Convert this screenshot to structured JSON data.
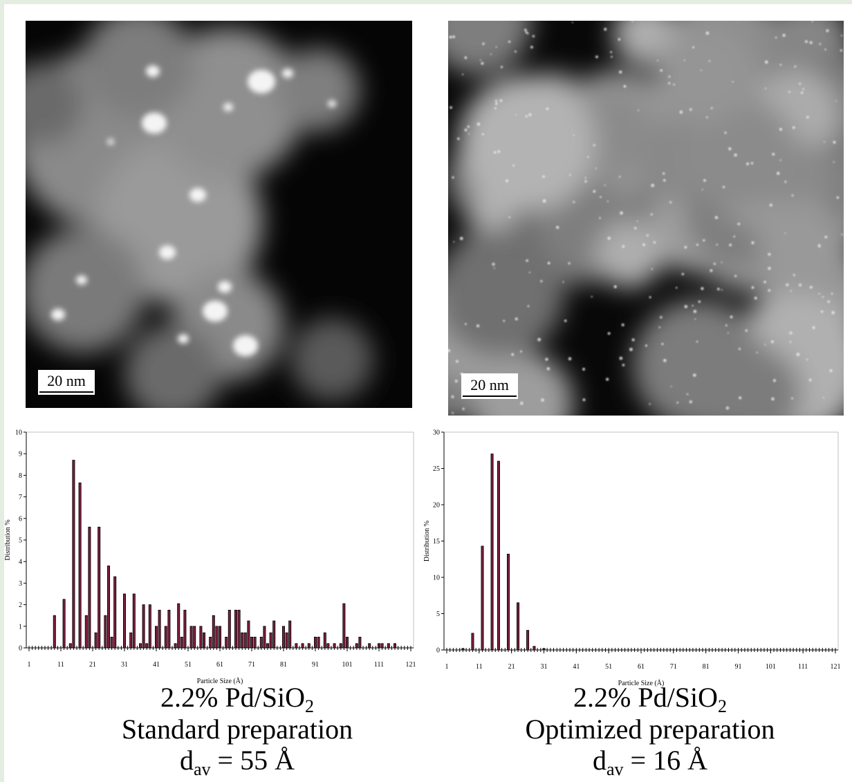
{
  "images": [
    {
      "scale_bar": "20 nm"
    },
    {
      "scale_bar": "20 nm"
    }
  ],
  "chart_data": [
    {
      "type": "bar",
      "y_label": "Distribution %",
      "x_label": "Particle Size (Å)",
      "color": "#7a1f3d",
      "x": [
        9,
        12,
        14,
        15,
        17,
        19,
        20,
        22,
        23,
        25,
        26,
        27,
        28,
        31,
        33,
        34,
        36,
        37,
        38,
        39,
        41,
        42,
        44,
        45,
        47,
        48,
        49,
        50,
        52,
        53,
        55,
        56,
        58,
        59,
        60,
        61,
        63,
        64,
        66,
        67,
        68,
        69,
        70,
        71,
        72,
        74,
        75,
        76,
        77,
        78,
        81,
        82,
        83,
        85,
        87,
        89,
        91,
        92,
        94,
        95,
        97,
        99,
        100,
        101,
        104,
        105,
        108,
        111,
        112,
        114,
        116
      ],
      "values": [
        1.5,
        2.25,
        0.2,
        8.7,
        7.65,
        1.5,
        5.6,
        0.7,
        5.6,
        1.5,
        3.8,
        0.5,
        3.3,
        2.5,
        0.7,
        2.5,
        0.2,
        2.0,
        0.2,
        2.0,
        1.0,
        1.75,
        1.0,
        1.75,
        0.2,
        2.05,
        0.5,
        1.75,
        1.0,
        1.0,
        1.0,
        0.7,
        0.5,
        1.5,
        1.0,
        1.0,
        0.5,
        1.75,
        1.75,
        1.75,
        0.7,
        0.7,
        1.25,
        0.5,
        0.5,
        0.5,
        1.0,
        0.2,
        0.7,
        1.25,
        1.0,
        0.7,
        1.25,
        0.2,
        0.2,
        0.2,
        0.5,
        0.5,
        0.7,
        0.2,
        0.2,
        0.2,
        2.05,
        0.5,
        0.2,
        0.5,
        0.2,
        0.2,
        0.2,
        0.2,
        0.2
      ],
      "xlim": [
        1,
        121
      ],
      "xticks": [
        1,
        11,
        21,
        31,
        41,
        51,
        61,
        71,
        81,
        91,
        101,
        111,
        121
      ],
      "ylim": [
        0,
        10
      ],
      "yticks": [
        0,
        1,
        2,
        3,
        4,
        5,
        6,
        7,
        8,
        9,
        10
      ]
    },
    {
      "type": "bar",
      "y_label": "Distribution %",
      "x_label": "Particle Size (Å)",
      "color": "#7a1f3d",
      "x": [
        6,
        9,
        12,
        15,
        17,
        20,
        23,
        26,
        28,
        31
      ],
      "values": [
        0.2,
        2.3,
        14.3,
        27,
        26,
        13.2,
        6.5,
        2.7,
        0.5,
        0.2
      ],
      "xlim": [
        1,
        121
      ],
      "xticks": [
        1,
        11,
        21,
        31,
        41,
        51,
        61,
        71,
        81,
        91,
        101,
        111,
        121
      ],
      "ylim": [
        0,
        30
      ],
      "yticks": [
        0,
        5,
        10,
        15,
        20,
        25,
        30
      ]
    }
  ],
  "captions": [
    {
      "lines": [
        [
          {
            "text": "2.2% Pd/SiO"
          },
          {
            "sub": "2"
          }
        ],
        [
          {
            "text": "Standard preparation"
          }
        ],
        [
          {
            "text": "d"
          },
          {
            "sub": "av"
          },
          {
            "text": " = 55 Å"
          }
        ]
      ]
    },
    {
      "lines": [
        [
          {
            "text": "2.2% Pd/SiO"
          },
          {
            "sub": "2"
          }
        ],
        [
          {
            "text": "Optimized preparation"
          }
        ],
        [
          {
            "text": "d"
          },
          {
            "sub": "av"
          },
          {
            "text": " = 16 Å"
          }
        ]
      ]
    }
  ]
}
